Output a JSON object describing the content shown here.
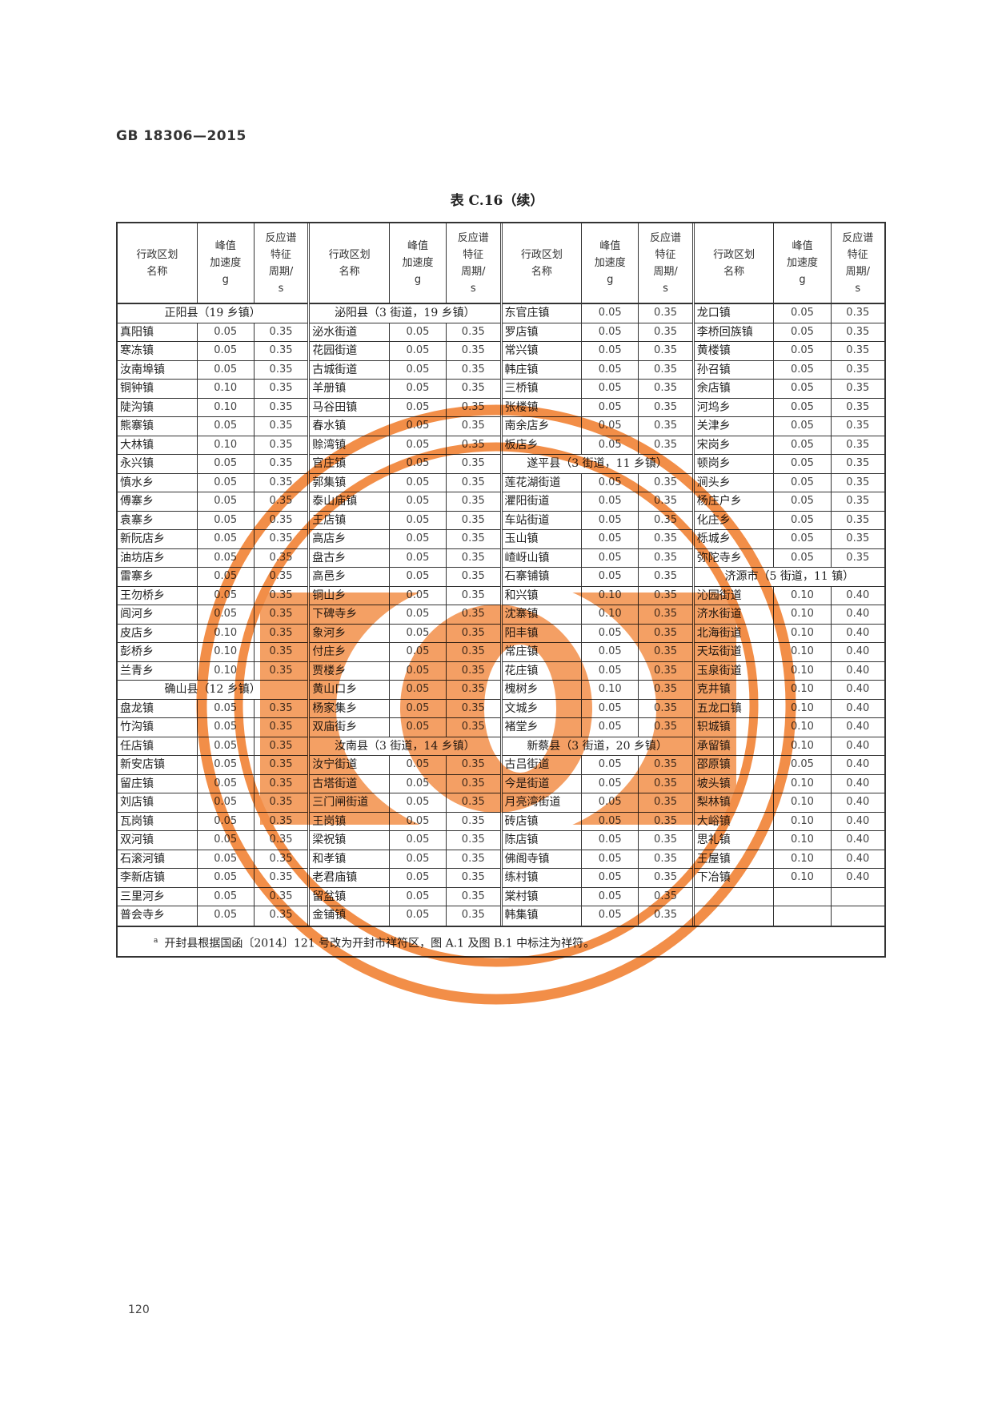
{
  "document": {
    "standard": "GB 18306—2015",
    "table_title": "表 C.16（续）",
    "page_number": "120",
    "footnote_mark": "a",
    "footnote": "开封县根据国函〔2014〕121 号改为开封市祥符区，图 A.1 及图 B.1 中标注为祥符。"
  },
  "table": {
    "headers": [
      "行政区划\n名称",
      "峰值\n加速度\ng",
      "反应谱\n特征\n周期/\ns"
    ],
    "groups": [
      {
        "rows": [
          {
            "section": "正阳县（19 乡镇）"
          },
          {
            "name": "真阳镇",
            "pga": "0.05",
            "period": "0.35"
          },
          {
            "name": "寒冻镇",
            "pga": "0.05",
            "period": "0.35"
          },
          {
            "name": "汝南埠镇",
            "pga": "0.05",
            "period": "0.35"
          },
          {
            "name": "铜钟镇",
            "pga": "0.10",
            "period": "0.35"
          },
          {
            "name": "陡沟镇",
            "pga": "0.10",
            "period": "0.35"
          },
          {
            "name": "熊寨镇",
            "pga": "0.05",
            "period": "0.35"
          },
          {
            "name": "大林镇",
            "pga": "0.10",
            "period": "0.35"
          },
          {
            "name": "永兴镇",
            "pga": "0.05",
            "period": "0.35"
          },
          {
            "name": "慎水乡",
            "pga": "0.05",
            "period": "0.35"
          },
          {
            "name": "傅寨乡",
            "pga": "0.05",
            "period": "0.35"
          },
          {
            "name": "袁寨乡",
            "pga": "0.05",
            "period": "0.35"
          },
          {
            "name": "新阮店乡",
            "pga": "0.05",
            "period": "0.35"
          },
          {
            "name": "油坊店乡",
            "pga": "0.05",
            "period": "0.35"
          },
          {
            "name": "雷寨乡",
            "pga": "0.05",
            "period": "0.35"
          },
          {
            "name": "王勿桥乡",
            "pga": "0.05",
            "period": "0.35"
          },
          {
            "name": "闾河乡",
            "pga": "0.05",
            "period": "0.35"
          },
          {
            "name": "皮店乡",
            "pga": "0.10",
            "period": "0.35"
          },
          {
            "name": "彭桥乡",
            "pga": "0.10",
            "period": "0.35"
          },
          {
            "name": "兰青乡",
            "pga": "0.10",
            "period": "0.35"
          },
          {
            "section": "确山县（12 乡镇）"
          },
          {
            "name": "盘龙镇",
            "pga": "0.05",
            "period": "0.35"
          },
          {
            "name": "竹沟镇",
            "pga": "0.05",
            "period": "0.35"
          },
          {
            "name": "任店镇",
            "pga": "0.05",
            "period": "0.35"
          },
          {
            "name": "新安店镇",
            "pga": "0.05",
            "period": "0.35"
          },
          {
            "name": "留庄镇",
            "pga": "0.05",
            "period": "0.35"
          },
          {
            "name": "刘店镇",
            "pga": "0.05",
            "period": "0.35"
          },
          {
            "name": "瓦岗镇",
            "pga": "0.05",
            "period": "0.35"
          },
          {
            "name": "双河镇",
            "pga": "0.05",
            "period": "0.35"
          },
          {
            "name": "石滚河镇",
            "pga": "0.05",
            "period": "0.35"
          },
          {
            "name": "李新店镇",
            "pga": "0.05",
            "period": "0.35"
          },
          {
            "name": "三里河乡",
            "pga": "0.05",
            "period": "0.35"
          },
          {
            "name": "普会寺乡",
            "pga": "0.05",
            "period": "0.35"
          }
        ]
      },
      {
        "rows": [
          {
            "section": "泌阳县（3 街道，19 乡镇）"
          },
          {
            "name": "泌水街道",
            "pga": "0.05",
            "period": "0.35"
          },
          {
            "name": "花园街道",
            "pga": "0.05",
            "period": "0.35"
          },
          {
            "name": "古城街道",
            "pga": "0.05",
            "period": "0.35"
          },
          {
            "name": "羊册镇",
            "pga": "0.05",
            "period": "0.35"
          },
          {
            "name": "马谷田镇",
            "pga": "0.05",
            "period": "0.35"
          },
          {
            "name": "春水镇",
            "pga": "0.05",
            "period": "0.35"
          },
          {
            "name": "赊湾镇",
            "pga": "0.05",
            "period": "0.35"
          },
          {
            "name": "官庄镇",
            "pga": "0.05",
            "period": "0.35"
          },
          {
            "name": "郭集镇",
            "pga": "0.05",
            "period": "0.35"
          },
          {
            "name": "泰山庙镇",
            "pga": "0.05",
            "period": "0.35"
          },
          {
            "name": "王店镇",
            "pga": "0.05",
            "period": "0.35"
          },
          {
            "name": "高店乡",
            "pga": "0.05",
            "period": "0.35"
          },
          {
            "name": "盘古乡",
            "pga": "0.05",
            "period": "0.35"
          },
          {
            "name": "高邑乡",
            "pga": "0.05",
            "period": "0.35"
          },
          {
            "name": "铜山乡",
            "pga": "0.05",
            "period": "0.35"
          },
          {
            "name": "下碑寺乡",
            "pga": "0.05",
            "period": "0.35"
          },
          {
            "name": "象河乡",
            "pga": "0.05",
            "period": "0.35"
          },
          {
            "name": "付庄乡",
            "pga": "0.05",
            "period": "0.35"
          },
          {
            "name": "贾楼乡",
            "pga": "0.05",
            "period": "0.35"
          },
          {
            "name": "黄山口乡",
            "pga": "0.05",
            "period": "0.35"
          },
          {
            "name": "杨家集乡",
            "pga": "0.05",
            "period": "0.35"
          },
          {
            "name": "双庙街乡",
            "pga": "0.05",
            "period": "0.35"
          },
          {
            "section": "汝南县（3 街道，14 乡镇）"
          },
          {
            "name": "汝宁街道",
            "pga": "0.05",
            "period": "0.35"
          },
          {
            "name": "古塔街道",
            "pga": "0.05",
            "period": "0.35"
          },
          {
            "name": "三门闸街道",
            "pga": "0.05",
            "period": "0.35"
          },
          {
            "name": "王岗镇",
            "pga": "0.05",
            "period": "0.35"
          },
          {
            "name": "梁祝镇",
            "pga": "0.05",
            "period": "0.35"
          },
          {
            "name": "和孝镇",
            "pga": "0.05",
            "period": "0.35"
          },
          {
            "name": "老君庙镇",
            "pga": "0.05",
            "period": "0.35"
          },
          {
            "name": "留盆镇",
            "pga": "0.05",
            "period": "0.35"
          },
          {
            "name": "金铺镇",
            "pga": "0.05",
            "period": "0.35"
          }
        ]
      },
      {
        "rows": [
          {
            "name": "东官庄镇",
            "pga": "0.05",
            "period": "0.35"
          },
          {
            "name": "罗店镇",
            "pga": "0.05",
            "period": "0.35"
          },
          {
            "name": "常兴镇",
            "pga": "0.05",
            "period": "0.35"
          },
          {
            "name": "韩庄镇",
            "pga": "0.05",
            "period": "0.35"
          },
          {
            "name": "三桥镇",
            "pga": "0.05",
            "period": "0.35"
          },
          {
            "name": "张楼镇",
            "pga": "0.05",
            "period": "0.35"
          },
          {
            "name": "南余店乡",
            "pga": "0.05",
            "period": "0.35"
          },
          {
            "name": "板店乡",
            "pga": "0.05",
            "period": "0.35"
          },
          {
            "section": "遂平县（3 街道，11 乡镇）"
          },
          {
            "name": "莲花湖街道",
            "pga": "0.05",
            "period": "0.35"
          },
          {
            "name": "灈阳街道",
            "pga": "0.05",
            "period": "0.35"
          },
          {
            "name": "车站街道",
            "pga": "0.05",
            "period": "0.35"
          },
          {
            "name": "玉山镇",
            "pga": "0.05",
            "period": "0.35"
          },
          {
            "name": "嵖岈山镇",
            "pga": "0.05",
            "period": "0.35"
          },
          {
            "name": "石寨铺镇",
            "pga": "0.05",
            "period": "0.35"
          },
          {
            "name": "和兴镇",
            "pga": "0.10",
            "period": "0.35"
          },
          {
            "name": "沈寨镇",
            "pga": "0.10",
            "period": "0.35"
          },
          {
            "name": "阳丰镇",
            "pga": "0.05",
            "period": "0.35"
          },
          {
            "name": "常庄镇",
            "pga": "0.05",
            "period": "0.35"
          },
          {
            "name": "花庄镇",
            "pga": "0.05",
            "period": "0.35"
          },
          {
            "name": "槐树乡",
            "pga": "0.10",
            "period": "0.35"
          },
          {
            "name": "文城乡",
            "pga": "0.05",
            "period": "0.35"
          },
          {
            "name": "褚堂乡",
            "pga": "0.05",
            "period": "0.35"
          },
          {
            "section": "新蔡县（3 街道，20 乡镇）"
          },
          {
            "name": "古吕街道",
            "pga": "0.05",
            "period": "0.35"
          },
          {
            "name": "今是街道",
            "pga": "0.05",
            "period": "0.35"
          },
          {
            "name": "月亮湾街道",
            "pga": "0.05",
            "period": "0.35"
          },
          {
            "name": "砖店镇",
            "pga": "0.05",
            "period": "0.35"
          },
          {
            "name": "陈店镇",
            "pga": "0.05",
            "period": "0.35"
          },
          {
            "name": "佛阁寺镇",
            "pga": "0.05",
            "period": "0.35"
          },
          {
            "name": "练村镇",
            "pga": "0.05",
            "period": "0.35"
          },
          {
            "name": "棠村镇",
            "pga": "0.05",
            "period": "0.35"
          },
          {
            "name": "韩集镇",
            "pga": "0.05",
            "period": "0.35"
          }
        ]
      },
      {
        "rows": [
          {
            "name": "龙口镇",
            "pga": "0.05",
            "period": "0.35"
          },
          {
            "name": "李桥回族镇",
            "pga": "0.05",
            "period": "0.35"
          },
          {
            "name": "黄楼镇",
            "pga": "0.05",
            "period": "0.35"
          },
          {
            "name": "孙召镇",
            "pga": "0.05",
            "period": "0.35"
          },
          {
            "name": "余店镇",
            "pga": "0.05",
            "period": "0.35"
          },
          {
            "name": "河坞乡",
            "pga": "0.05",
            "period": "0.35"
          },
          {
            "name": "关津乡",
            "pga": "0.05",
            "period": "0.35"
          },
          {
            "name": "宋岗乡",
            "pga": "0.05",
            "period": "0.35"
          },
          {
            "name": "顿岗乡",
            "pga": "0.05",
            "period": "0.35"
          },
          {
            "name": "涧头乡",
            "pga": "0.05",
            "period": "0.35"
          },
          {
            "name": "杨庄户乡",
            "pga": "0.05",
            "period": "0.35"
          },
          {
            "name": "化庄乡",
            "pga": "0.05",
            "period": "0.35"
          },
          {
            "name": "栎城乡",
            "pga": "0.05",
            "period": "0.35"
          },
          {
            "name": "弥陀寺乡",
            "pga": "0.05",
            "period": "0.35"
          },
          {
            "section": "济源市（5 街道，11 镇）"
          },
          {
            "name": "沁园街道",
            "pga": "0.10",
            "period": "0.40"
          },
          {
            "name": "济水街道",
            "pga": "0.10",
            "period": "0.40"
          },
          {
            "name": "北海街道",
            "pga": "0.10",
            "period": "0.40"
          },
          {
            "name": "天坛街道",
            "pga": "0.10",
            "period": "0.40"
          },
          {
            "name": "玉泉街道",
            "pga": "0.10",
            "period": "0.40"
          },
          {
            "name": "克井镇",
            "pga": "0.10",
            "period": "0.40"
          },
          {
            "name": "五龙口镇",
            "pga": "0.10",
            "period": "0.40"
          },
          {
            "name": "轵城镇",
            "pga": "0.10",
            "period": "0.40"
          },
          {
            "name": "承留镇",
            "pga": "0.10",
            "period": "0.40"
          },
          {
            "name": "邵原镇",
            "pga": "0.05",
            "period": "0.40"
          },
          {
            "name": "坡头镇",
            "pga": "0.10",
            "period": "0.40"
          },
          {
            "name": "梨林镇",
            "pga": "0.10",
            "period": "0.40"
          },
          {
            "name": "大峪镇",
            "pga": "0.10",
            "period": "0.40"
          },
          {
            "name": "思礼镇",
            "pga": "0.10",
            "period": "0.40"
          },
          {
            "name": "王屋镇",
            "pga": "0.10",
            "period": "0.40"
          },
          {
            "name": "下冶镇",
            "pga": "0.10",
            "period": "0.40"
          },
          {
            "name": "",
            "pga": "",
            "period": ""
          },
          {
            "name": "",
            "pga": "",
            "period": ""
          }
        ]
      }
    ]
  },
  "stamp": {
    "color": "#f07a28",
    "icon": "watermark-seal-icon"
  }
}
